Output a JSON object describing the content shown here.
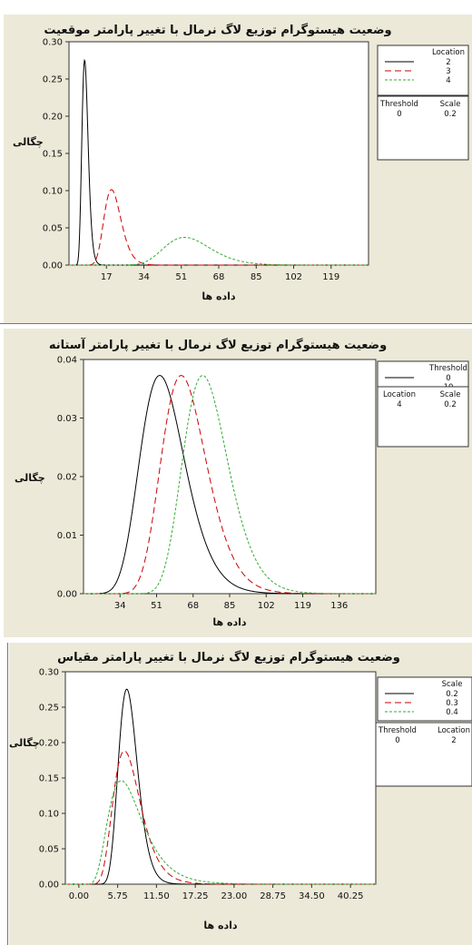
{
  "chart_data": [
    {
      "type": "line",
      "title": "وضعیت هیستوگرام توزیع لاگ نرمال با تغییر پارامتر موقعیت",
      "xlabel": "داده ها",
      "ylabel": "چگالی",
      "x_ticks": [
        17,
        34,
        51,
        68,
        85,
        102,
        119
      ],
      "y_ticks": [
        "0.00",
        "0.05",
        "0.10",
        "0.15",
        "0.20",
        "0.25",
        "0.30"
      ],
      "xlim": [
        0,
        136
      ],
      "ylim": [
        0,
        0.3
      ],
      "legend": {
        "title": "Location",
        "entries": [
          {
            "label": "2",
            "color": "#000000",
            "dash": "solid"
          },
          {
            "label": "3",
            "color": "#cc0000",
            "dash": "dashed"
          },
          {
            "label": "4",
            "color": "#33aa33",
            "dash": "dotted"
          }
        ]
      },
      "params_table": {
        "headers": [
          "Threshold",
          "Scale"
        ],
        "values": [
          "0",
          "0.2"
        ]
      },
      "series": [
        {
          "name": "2",
          "mu": 2,
          "sigma": 0.2,
          "threshold": 0,
          "color": "#000000",
          "dash": "solid"
        },
        {
          "name": "3",
          "mu": 3,
          "sigma": 0.2,
          "threshold": 0,
          "color": "#cc0000",
          "dash": "dashed"
        },
        {
          "name": "4",
          "mu": 4,
          "sigma": 0.2,
          "threshold": 0,
          "color": "#33aa33",
          "dash": "dotted"
        }
      ]
    },
    {
      "type": "line",
      "title": "وضعیت هیستوگرام توزیع لاگ نرمال با تغییر پارامتر آستانه",
      "xlabel": "داده ها",
      "ylabel": "چگالی",
      "x_ticks": [
        34,
        51,
        68,
        85,
        102,
        119,
        136
      ],
      "y_ticks": [
        "0.00",
        "0.01",
        "0.02",
        "0.03",
        "0.04"
      ],
      "xlim": [
        17,
        153
      ],
      "ylim": [
        0,
        0.04
      ],
      "legend": {
        "title": "Threshold",
        "entries": [
          {
            "label": "0",
            "color": "#000000",
            "dash": "solid"
          },
          {
            "label": "10",
            "color": "#cc0000",
            "dash": "dashed"
          },
          {
            "label": "20",
            "color": "#33aa33",
            "dash": "dotted"
          }
        ]
      },
      "params_table": {
        "headers": [
          "Location",
          "Scale"
        ],
        "values": [
          "4",
          "0.2"
        ]
      },
      "series": [
        {
          "name": "0",
          "mu": 4,
          "sigma": 0.2,
          "threshold": 0,
          "color": "#000000",
          "dash": "solid"
        },
        {
          "name": "10",
          "mu": 4,
          "sigma": 0.2,
          "threshold": 10,
          "color": "#cc0000",
          "dash": "dashed"
        },
        {
          "name": "20",
          "mu": 4,
          "sigma": 0.2,
          "threshold": 20,
          "color": "#33aa33",
          "dash": "dotted"
        }
      ]
    },
    {
      "type": "line",
      "title": "وضعیت هیستوگرام توزیع لاگ نرمال با تغییر پارامتر مقیاس",
      "xlabel": "داده ها",
      "ylabel": "چگالی",
      "x_ticks": [
        "0.00",
        "5.75",
        "11.50",
        "17.25",
        "23.00",
        "28.75",
        "34.50",
        "40.25"
      ],
      "y_ticks": [
        "0.00",
        "0.05",
        "0.10",
        "0.15",
        "0.20",
        "0.25",
        "0.30"
      ],
      "xlim": [
        -2,
        44
      ],
      "ylim": [
        0,
        0.3
      ],
      "legend": {
        "title": "Scale",
        "entries": [
          {
            "label": "0.2",
            "color": "#000000",
            "dash": "solid"
          },
          {
            "label": "0.3",
            "color": "#cc0000",
            "dash": "dashed"
          },
          {
            "label": "0.4",
            "color": "#33aa33",
            "dash": "dotted"
          }
        ]
      },
      "params_table": {
        "headers": [
          "Threshold",
          "Location"
        ],
        "values": [
          "0",
          "2"
        ]
      },
      "series": [
        {
          "name": "0.2",
          "mu": 2,
          "sigma": 0.2,
          "threshold": 0,
          "color": "#000000",
          "dash": "solid"
        },
        {
          "name": "0.3",
          "mu": 2,
          "sigma": 0.3,
          "threshold": 0,
          "color": "#cc0000",
          "dash": "dashed"
        },
        {
          "name": "0.4",
          "mu": 2,
          "sigma": 0.4,
          "threshold": 0,
          "color": "#33aa33",
          "dash": "dotted"
        }
      ]
    }
  ]
}
